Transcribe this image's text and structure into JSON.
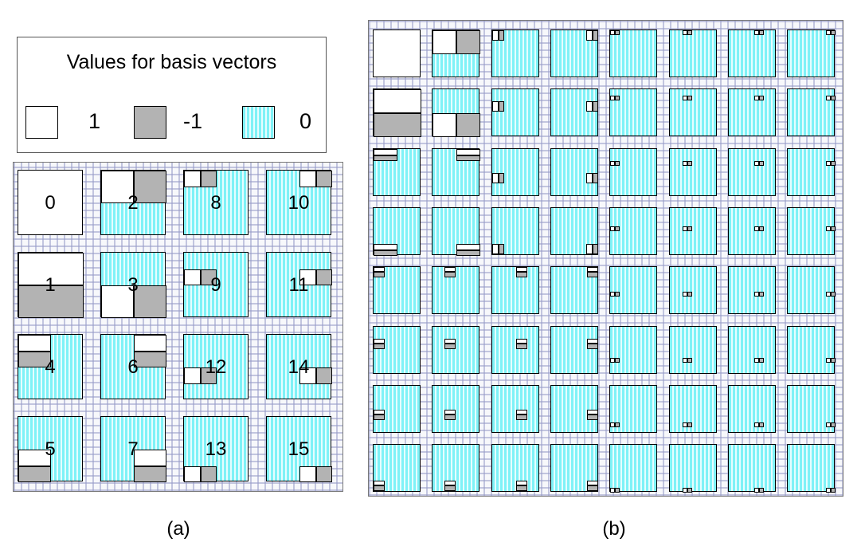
{
  "legend": {
    "title": "Values for basis vectors",
    "items": [
      {
        "value": "1",
        "swatch": "white",
        "color": "#ffffff"
      },
      {
        "value": "-1",
        "swatch": "gray",
        "color": "#b3b3b3"
      },
      {
        "value": "0",
        "swatch": "stripes",
        "color": "#7ff2f7"
      }
    ]
  },
  "panel_a": {
    "caption": "(a)",
    "grid_rows": 4,
    "grid_cols": 4,
    "tile_labels": [
      [
        "0",
        "2",
        "8",
        "10"
      ],
      [
        "1",
        "3",
        "9",
        "11"
      ],
      [
        "4",
        "6",
        "12",
        "14"
      ],
      [
        "5",
        "7",
        "13",
        "15"
      ]
    ]
  },
  "panel_b": {
    "caption": "(b)",
    "grid_rows": 8,
    "grid_cols": 8
  }
}
